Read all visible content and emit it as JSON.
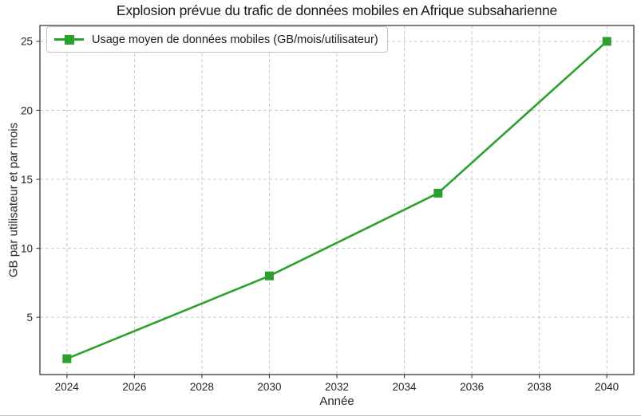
{
  "chart_data": {
    "type": "line",
    "title": "Explosion prévue du trafic de données mobiles en Afrique subsaharienne",
    "xlabel": "Année",
    "ylabel": "GB par utilisateur et par mois",
    "legend": {
      "position": "upper-left",
      "entries": [
        {
          "label": "Usage moyen de données mobiles (GB/mois/utilisateur)",
          "color": "#2ca02c",
          "marker": "square"
        }
      ]
    },
    "series": [
      {
        "name": "Usage moyen de données mobiles (GB/mois/utilisateur)",
        "x": [
          2024,
          2030,
          2035,
          2040
        ],
        "y": [
          2,
          8,
          14,
          25
        ],
        "color": "#2ca02c",
        "marker": "square",
        "line_style": "solid"
      }
    ],
    "xticks": [
      2024,
      2026,
      2028,
      2030,
      2032,
      2034,
      2036,
      2038,
      2040
    ],
    "yticks": [
      5,
      10,
      15,
      20,
      25
    ],
    "xlim": [
      2023.2,
      2040.8
    ],
    "ylim": [
      0.85,
      26.15
    ],
    "grid": {
      "visible": true,
      "style": "dashed",
      "color": "#c9c9c9"
    },
    "spine_color": "#4a4a4a",
    "text_color": "#262626"
  }
}
